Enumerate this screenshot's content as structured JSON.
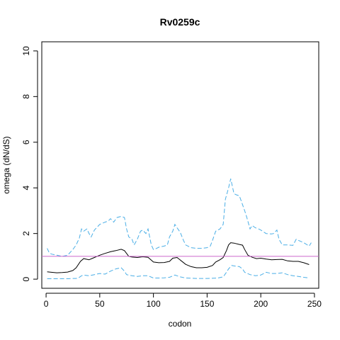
{
  "chart_data": {
    "type": "line",
    "title": "Rv0259c",
    "xlabel": "codon",
    "ylabel": "omega (dN/dS)",
    "xlim": [
      -4,
      254
    ],
    "ylim": [
      -0.4,
      10.4
    ],
    "x_ticks": [
      0,
      50,
      100,
      150,
      200,
      250
    ],
    "y_ticks": [
      0,
      2,
      4,
      6,
      8,
      10
    ],
    "reference_line": {
      "y": 1.0,
      "color": "#cc66cc"
    },
    "series": [
      {
        "role": "estimate",
        "color": "#000000",
        "style": "solid",
        "x": [
          1,
          5,
          10,
          15,
          20,
          25,
          28,
          32,
          35,
          40,
          45,
          50,
          55,
          60,
          65,
          70,
          73,
          77,
          80,
          85,
          90,
          95,
          100,
          105,
          110,
          115,
          118,
          122,
          126,
          130,
          135,
          140,
          145,
          150,
          155,
          158,
          162,
          165,
          168,
          170,
          172,
          175,
          180,
          183,
          185,
          188,
          192,
          196,
          200,
          205,
          210,
          215,
          220,
          225,
          230,
          235,
          240,
          245
        ],
        "y": [
          0.32,
          0.3,
          0.28,
          0.29,
          0.31,
          0.38,
          0.5,
          0.78,
          0.9,
          0.85,
          0.95,
          1.05,
          1.13,
          1.2,
          1.25,
          1.31,
          1.25,
          1.0,
          0.97,
          0.95,
          0.98,
          0.96,
          0.75,
          0.72,
          0.73,
          0.78,
          0.92,
          0.95,
          0.8,
          0.65,
          0.55,
          0.5,
          0.5,
          0.52,
          0.6,
          0.75,
          0.85,
          0.95,
          1.25,
          1.5,
          1.6,
          1.58,
          1.52,
          1.49,
          1.3,
          1.05,
          0.96,
          0.9,
          0.92,
          0.88,
          0.85,
          0.86,
          0.87,
          0.8,
          0.78,
          0.78,
          0.72,
          0.64
        ]
      },
      {
        "role": "upper",
        "color": "#4aaee6",
        "style": "dashed",
        "x": [
          1,
          3,
          5,
          10,
          15,
          20,
          25,
          28,
          31,
          33,
          35,
          38,
          40,
          42,
          45,
          50,
          55,
          58,
          60,
          63,
          66,
          70,
          73,
          75,
          77,
          80,
          82,
          85,
          88,
          90,
          93,
          95,
          98,
          100,
          103,
          105,
          110,
          113,
          115,
          118,
          120,
          122,
          125,
          128,
          130,
          135,
          140,
          145,
          150,
          153,
          155,
          158,
          162,
          165,
          167,
          170,
          172,
          175,
          177,
          180,
          182,
          185,
          187,
          190,
          192,
          195,
          198,
          200,
          205,
          210,
          212,
          215,
          217,
          220,
          225,
          230,
          233,
          235,
          240,
          245,
          247
        ],
        "y": [
          1.35,
          1.15,
          1.1,
          1.05,
          1.0,
          1.05,
          1.3,
          1.5,
          1.8,
          2.2,
          2.1,
          2.2,
          2.0,
          1.85,
          2.15,
          2.4,
          2.5,
          2.55,
          2.65,
          2.5,
          2.7,
          2.75,
          2.7,
          2.2,
          1.85,
          1.75,
          1.5,
          1.75,
          2.1,
          2.15,
          2.0,
          2.2,
          1.5,
          1.3,
          1.35,
          1.4,
          1.45,
          1.5,
          1.85,
          2.1,
          2.4,
          2.25,
          2.05,
          1.7,
          1.5,
          1.38,
          1.35,
          1.35,
          1.38,
          1.45,
          1.7,
          2.1,
          2.2,
          2.4,
          3.5,
          4.0,
          4.4,
          3.75,
          3.7,
          3.65,
          3.4,
          3.0,
          2.7,
          2.2,
          2.35,
          2.25,
          2.2,
          2.15,
          2.0,
          1.98,
          2.0,
          2.15,
          1.75,
          1.5,
          1.5,
          1.48,
          1.75,
          1.7,
          1.6,
          1.45,
          1.6
        ]
      },
      {
        "role": "lower",
        "color": "#4aaee6",
        "style": "dashed",
        "x": [
          1,
          10,
          20,
          25,
          28,
          30,
          33,
          35,
          40,
          45,
          50,
          55,
          60,
          65,
          70,
          73,
          75,
          80,
          85,
          90,
          95,
          100,
          105,
          110,
          115,
          120,
          125,
          130,
          140,
          150,
          160,
          165,
          168,
          170,
          173,
          175,
          180,
          183,
          185,
          190,
          195,
          200,
          205,
          210,
          215,
          220,
          225,
          230,
          235,
          240,
          245
        ],
        "y": [
          0.02,
          0.02,
          0.02,
          0.03,
          0.03,
          0.05,
          0.15,
          0.18,
          0.15,
          0.2,
          0.25,
          0.22,
          0.35,
          0.45,
          0.5,
          0.35,
          0.2,
          0.15,
          0.12,
          0.15,
          0.15,
          0.05,
          0.05,
          0.06,
          0.08,
          0.18,
          0.1,
          0.05,
          0.03,
          0.03,
          0.05,
          0.1,
          0.3,
          0.45,
          0.6,
          0.58,
          0.55,
          0.45,
          0.3,
          0.2,
          0.15,
          0.18,
          0.3,
          0.25,
          0.25,
          0.28,
          0.2,
          0.15,
          0.12,
          0.08,
          0.05
        ]
      }
    ]
  }
}
